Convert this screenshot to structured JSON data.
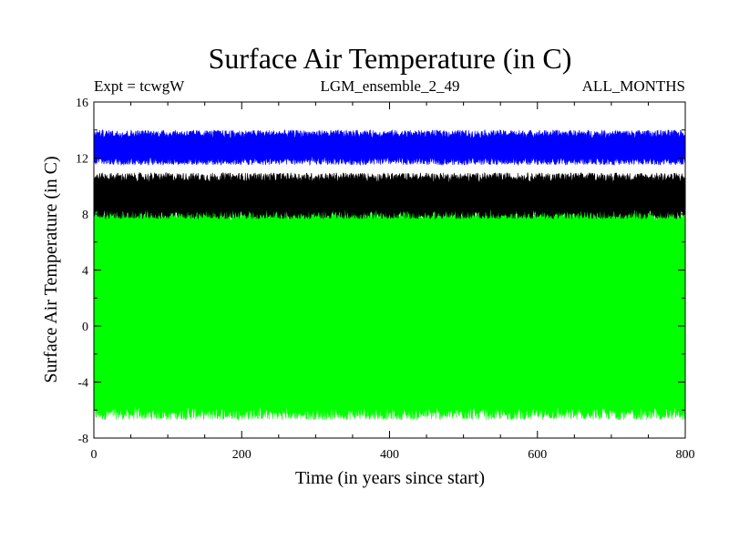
{
  "chart_data": {
    "type": "area",
    "title": "Surface Air Temperature (in C)",
    "subtitle_left": "Expt = tcwgW",
    "subtitle_center": "LGM_ensemble_2_49",
    "subtitle_right": "ALL_MONTHS",
    "xlabel": "Time (in years since start)",
    "ylabel": "Surface Air Temperature (in C)",
    "xlim": [
      0,
      800
    ],
    "ylim": [
      -8,
      16
    ],
    "x_ticks": [
      0,
      200,
      400,
      600,
      800
    ],
    "x_tick_labels": [
      "0",
      "200",
      "400",
      "600",
      "800"
    ],
    "y_ticks": [
      -8,
      -4,
      0,
      4,
      8,
      12,
      16
    ],
    "y_tick_labels": [
      "-8",
      "-4",
      "0",
      "4",
      "8",
      "12",
      "16"
    ],
    "grid": false,
    "series": [
      {
        "name": "green",
        "color": "#00ff00",
        "center_low": -6.2,
        "center_high": 8.0,
        "noise": 0.5
      },
      {
        "name": "black",
        "color": "#000000",
        "center_low": 8.0,
        "center_high": 10.6,
        "noise": 0.35
      },
      {
        "name": "blue",
        "color": "#0000ff",
        "center_low": 11.8,
        "center_high": 13.7,
        "noise": 0.3
      }
    ]
  }
}
